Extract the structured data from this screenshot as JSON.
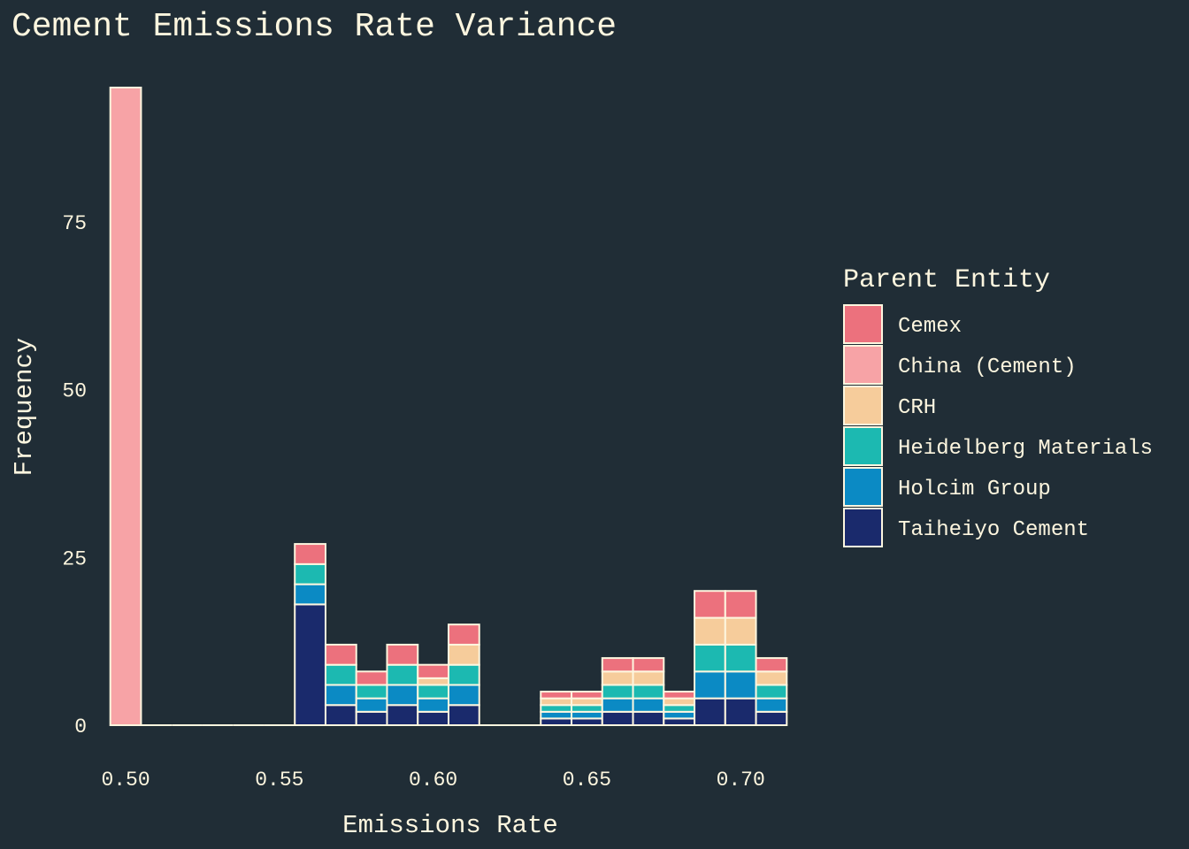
{
  "chart_data": {
    "type": "bar",
    "stacked": true,
    "title": "Cement Emissions Rate Variance",
    "xlabel": "Emissions Rate",
    "ylabel": "Frequency",
    "xlim": [
      0.4925,
      0.7175
    ],
    "ylim": [
      0,
      95
    ],
    "x_ticks": [
      {
        "value": 0.5,
        "label": "0.50"
      },
      {
        "value": 0.55,
        "label": "0.55"
      },
      {
        "value": 0.6,
        "label": "0.60"
      },
      {
        "value": 0.65,
        "label": "0.65"
      },
      {
        "value": 0.7,
        "label": "0.70"
      }
    ],
    "y_ticks": [
      {
        "value": 0,
        "label": "0"
      },
      {
        "value": 25,
        "label": "25"
      },
      {
        "value": 50,
        "label": "50"
      },
      {
        "value": 75,
        "label": "75"
      }
    ],
    "grid": false,
    "legend": {
      "title": "Parent Entity",
      "position": "right"
    },
    "bin_edges": [
      0.495,
      0.505,
      0.515,
      0.525,
      0.535,
      0.545,
      0.555,
      0.565,
      0.575,
      0.585,
      0.595,
      0.605,
      0.615,
      0.625,
      0.635,
      0.645,
      0.655,
      0.665,
      0.675,
      0.685,
      0.695,
      0.705,
      0.715
    ],
    "series": [
      {
        "name": "Taiheiyo Cement",
        "color": "#1a2a6c",
        "values": [
          0,
          0,
          0,
          0,
          0,
          0,
          18,
          3,
          2,
          3,
          2,
          3,
          0,
          0,
          1,
          1,
          2,
          2,
          1,
          4,
          4,
          2
        ]
      },
      {
        "name": "Holcim Group",
        "color": "#0b8ac4",
        "values": [
          0,
          0,
          0,
          0,
          0,
          0,
          3,
          3,
          2,
          3,
          2,
          3,
          0,
          0,
          1,
          1,
          2,
          2,
          1,
          4,
          4,
          2
        ]
      },
      {
        "name": "Heidelberg Materials",
        "color": "#1cb9b1",
        "values": [
          0,
          0,
          0,
          0,
          0,
          0,
          3,
          3,
          2,
          3,
          2,
          3,
          0,
          0,
          1,
          1,
          2,
          2,
          1,
          4,
          4,
          2
        ]
      },
      {
        "name": "CRH",
        "color": "#f6cc9b",
        "values": [
          0,
          0,
          0,
          0,
          0,
          0,
          0,
          0,
          0,
          0,
          1,
          3,
          0,
          0,
          1,
          1,
          2,
          2,
          1,
          4,
          4,
          2
        ]
      },
      {
        "name": "China (Cement)",
        "color": "#f7a3a6",
        "values": [
          95,
          0,
          0,
          0,
          0,
          0,
          0,
          0,
          0,
          0,
          0,
          0,
          0,
          0,
          0,
          0,
          0,
          0,
          0,
          0,
          0,
          0
        ]
      },
      {
        "name": "Cemex",
        "color": "#ec717d",
        "values": [
          0,
          0,
          0,
          0,
          0,
          0,
          3,
          3,
          2,
          3,
          2,
          3,
          0,
          0,
          1,
          1,
          2,
          2,
          1,
          4,
          4,
          2
        ]
      }
    ],
    "legend_order": [
      "Cemex",
      "China (Cement)",
      "CRH",
      "Heidelberg Materials",
      "Holcim Group",
      "Taiheiyo Cement"
    ],
    "colors": {
      "background": "#202d36",
      "outline": "#fdf6df",
      "text": "#fdf6df"
    }
  }
}
